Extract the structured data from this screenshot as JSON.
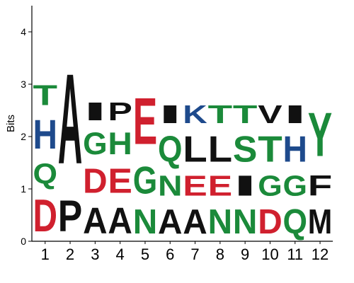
{
  "chart_data": {
    "type": "sequence-logo",
    "ylabel": "Bits",
    "ylim": [
      0,
      4.5
    ],
    "yticks": [
      0,
      1,
      2,
      3,
      4
    ],
    "categories": [
      "1",
      "2",
      "3",
      "4",
      "5",
      "6",
      "7",
      "8",
      "9",
      "10",
      "11",
      "12"
    ],
    "colors": {
      "red": "#d0202e",
      "green": "#1b8a3a",
      "blue": "#1e4a8c",
      "black": "#111111"
    },
    "columns": [
      {
        "stack": [
          {
            "letter": "D",
            "height": 0.98,
            "color": "red"
          },
          {
            "letter": "Q",
            "height": 0.62,
            "color": "green"
          },
          {
            "letter": "H",
            "height": 0.88,
            "color": "blue"
          },
          {
            "letter": "T",
            "height": 0.62,
            "color": "green"
          }
        ]
      },
      {
        "stack": [
          {
            "letter": "P",
            "height": 0.95,
            "color": "black"
          },
          {
            "letter": "A",
            "height": 2.75,
            "color": "black"
          }
        ]
      },
      {
        "stack": [
          {
            "letter": "A",
            "height": 0.78,
            "color": "black"
          },
          {
            "letter": "D",
            "height": 0.75,
            "color": "red"
          },
          {
            "letter": "G",
            "height": 0.67,
            "color": "green"
          },
          {
            "letter": "I",
            "height": 0.55,
            "color": "black"
          }
        ]
      },
      {
        "stack": [
          {
            "letter": "A",
            "height": 0.78,
            "color": "black"
          },
          {
            "letter": "E",
            "height": 0.75,
            "color": "red"
          },
          {
            "letter": "H",
            "height": 0.67,
            "color": "green"
          },
          {
            "letter": "P",
            "height": 0.55,
            "color": "black"
          }
        ]
      },
      {
        "stack": [
          {
            "letter": "N",
            "height": 0.75,
            "color": "green"
          },
          {
            "letter": "G",
            "height": 0.83,
            "color": "green"
          },
          {
            "letter": "E",
            "height": 1.42,
            "color": "red"
          }
        ]
      },
      {
        "stack": [
          {
            "letter": "A",
            "height": 0.75,
            "color": "black"
          },
          {
            "letter": "N",
            "height": 0.62,
            "color": "green"
          },
          {
            "letter": "Q",
            "height": 0.78,
            "color": "green"
          },
          {
            "letter": "I",
            "height": 0.55,
            "color": "black"
          }
        ]
      },
      {
        "stack": [
          {
            "letter": "A",
            "height": 0.75,
            "color": "black"
          },
          {
            "letter": "E",
            "height": 0.62,
            "color": "red"
          },
          {
            "letter": "L",
            "height": 0.78,
            "color": "black"
          },
          {
            "letter": "K",
            "height": 0.55,
            "color": "blue"
          }
        ]
      },
      {
        "stack": [
          {
            "letter": "N",
            "height": 0.75,
            "color": "green"
          },
          {
            "letter": "E",
            "height": 0.62,
            "color": "red"
          },
          {
            "letter": "L",
            "height": 0.78,
            "color": "black"
          },
          {
            "letter": "T",
            "height": 0.55,
            "color": "green"
          }
        ]
      },
      {
        "stack": [
          {
            "letter": "N",
            "height": 0.75,
            "color": "green"
          },
          {
            "letter": "I",
            "height": 0.62,
            "color": "black"
          },
          {
            "letter": "S",
            "height": 0.78,
            "color": "green"
          },
          {
            "letter": "T",
            "height": 0.55,
            "color": "green"
          }
        ]
      },
      {
        "stack": [
          {
            "letter": "D",
            "height": 0.75,
            "color": "red"
          },
          {
            "letter": "G",
            "height": 0.62,
            "color": "green"
          },
          {
            "letter": "T",
            "height": 0.78,
            "color": "green"
          },
          {
            "letter": "V",
            "height": 0.55,
            "color": "black"
          }
        ]
      },
      {
        "stack": [
          {
            "letter": "Q",
            "height": 0.75,
            "color": "green"
          },
          {
            "letter": "G",
            "height": 0.62,
            "color": "green"
          },
          {
            "letter": "H",
            "height": 0.78,
            "color": "blue"
          },
          {
            "letter": "I",
            "height": 0.55,
            "color": "black"
          }
        ]
      },
      {
        "stack": [
          {
            "letter": "M",
            "height": 0.75,
            "color": "black"
          },
          {
            "letter": "F",
            "height": 0.62,
            "color": "black"
          },
          {
            "letter": "Y",
            "height": 1.33,
            "color": "green"
          }
        ]
      }
    ]
  }
}
